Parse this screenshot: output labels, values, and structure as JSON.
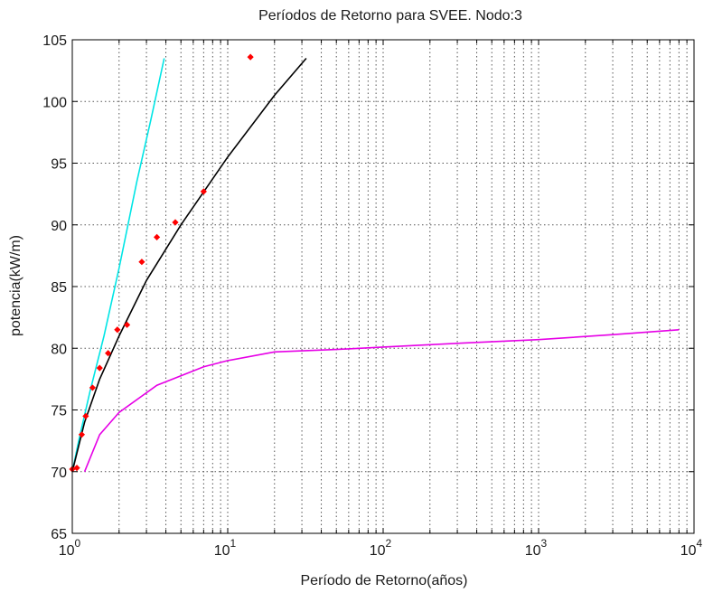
{
  "chart_data": {
    "type": "line",
    "title": "Períodos de Retorno para SVEE. Nodo:3",
    "xlabel": "Período de Retorno(años)",
    "ylabel": "potencia(kW/m)",
    "xscale": "log",
    "xlim": [
      1,
      10000
    ],
    "ylim": [
      65,
      105
    ],
    "grid": true,
    "xticks": [
      1,
      10,
      100,
      1000,
      10000
    ],
    "xtick_labels": [
      {
        "base": "10",
        "exp": "0"
      },
      {
        "base": "10",
        "exp": "1"
      },
      {
        "base": "10",
        "exp": "2"
      },
      {
        "base": "10",
        "exp": "3"
      },
      {
        "base": "10",
        "exp": "4"
      }
    ],
    "yticks": [
      65,
      70,
      75,
      80,
      85,
      90,
      95,
      100,
      105
    ],
    "series": [
      {
        "kind": "line",
        "color": "#00e5e5",
        "x": [
          1.0,
          1.1,
          1.3,
          1.6,
          2.0,
          2.6,
          3.2,
          3.9
        ],
        "y": [
          70.0,
          72.5,
          76.5,
          81.0,
          86.5,
          93.5,
          98.5,
          103.5
        ]
      },
      {
        "kind": "line",
        "color": "#000000",
        "x": [
          1.0,
          1.2,
          1.5,
          2.0,
          3.0,
          5.0,
          10.0,
          20.0,
          32.0
        ],
        "y": [
          70.0,
          74.0,
          77.5,
          81.0,
          85.5,
          90.0,
          95.5,
          100.5,
          103.5
        ]
      },
      {
        "kind": "line",
        "color": "#e600e6",
        "x": [
          1.2,
          1.5,
          2.0,
          3.5,
          7.0,
          10.0,
          20.0,
          50.0,
          100.0,
          300.0,
          1000.0,
          3000.0,
          8000.0
        ],
        "y": [
          70.0,
          73.0,
          74.8,
          77.0,
          78.5,
          79.0,
          79.7,
          79.9,
          80.1,
          80.4,
          80.7,
          81.1,
          81.5
        ]
      },
      {
        "kind": "scatter",
        "color": "#ff0000",
        "x": [
          1.0,
          1.07,
          1.15,
          1.22,
          1.35,
          1.5,
          1.7,
          1.95,
          2.25,
          2.8,
          3.5,
          4.6,
          7.0,
          14.0
        ],
        "y": [
          70.2,
          70.3,
          73.0,
          74.5,
          76.8,
          78.4,
          79.6,
          81.5,
          81.9,
          87.0,
          89.0,
          90.2,
          92.7,
          103.6
        ]
      }
    ]
  }
}
